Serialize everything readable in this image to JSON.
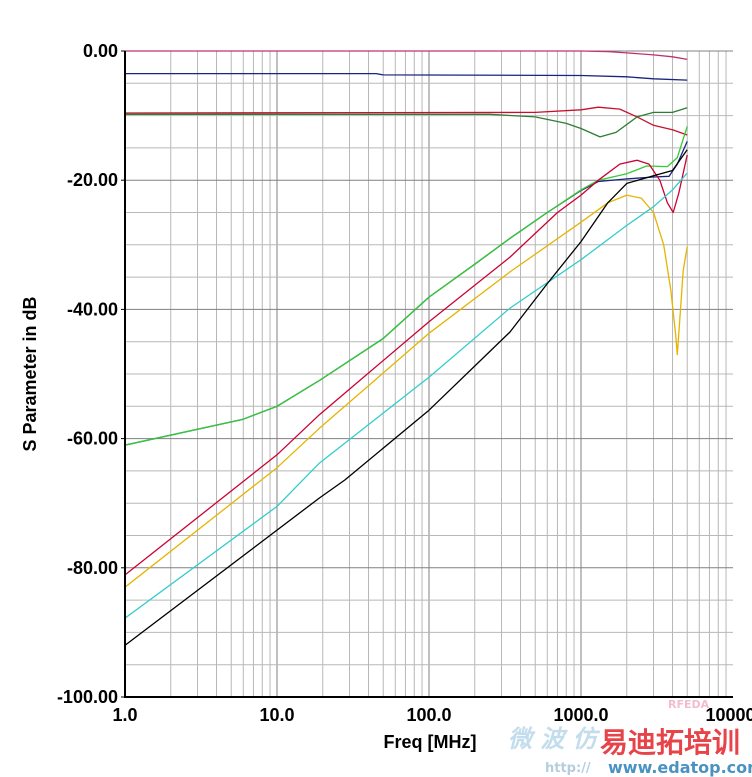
{
  "chart_data": {
    "type": "line",
    "title": "",
    "xlabel": "Freq [MHz]",
    "ylabel": "S Parameter in dB",
    "xscale": "log",
    "xlim": [
      1,
      10000
    ],
    "ylim": [
      -100,
      0
    ],
    "x_ticks": [
      "1.0",
      "10.0",
      "100.0",
      "1000.0",
      "10000."
    ],
    "x_tick_values": [
      1,
      10,
      100,
      1000,
      10000
    ],
    "y_ticks": [
      "0.00",
      "-20.00",
      "-40.00",
      "-60.00",
      "-80.00",
      "-100.00"
    ],
    "y_tick_values": [
      0,
      -20,
      -40,
      -60,
      -80,
      -100
    ],
    "grid": true,
    "legend": "none",
    "series": [
      {
        "name": "trace-magenta",
        "color": "#c2306e",
        "x": [
          1,
          1000,
          1500,
          2000,
          3000,
          4000,
          5000
        ],
        "y": [
          0,
          0,
          -0.1,
          -0.3,
          -0.6,
          -0.9,
          -1.3
        ]
      },
      {
        "name": "trace-navy-top",
        "color": "#1a237e",
        "x": [
          1,
          45,
          50,
          1000,
          2000,
          3000,
          5000
        ],
        "y": [
          -3.5,
          -3.5,
          -3.7,
          -3.8,
          -4.0,
          -4.3,
          -4.5
        ]
      },
      {
        "name": "trace-red-top",
        "color": "#c8102e",
        "x": [
          1,
          500,
          1000,
          1300,
          1800,
          2340,
          3000,
          4000,
          5000
        ],
        "y": [
          -9.6,
          -9.5,
          -9.1,
          -8.7,
          -9.0,
          -10.2,
          -11.5,
          -12.2,
          -13
        ]
      },
      {
        "name": "trace-darkgreen",
        "color": "#2e7d32",
        "x": [
          1,
          250,
          500,
          800,
          1000,
          1334,
          1700,
          2340,
          3000,
          4000,
          5000
        ],
        "y": [
          -9.8,
          -9.8,
          -10.2,
          -11.2,
          -12,
          -13.3,
          -12.6,
          -10.2,
          -9.5,
          -9.5,
          -8.8
        ]
      },
      {
        "name": "trace-navy-coupling",
        "color": "#1a237e",
        "x": [
          1,
          6,
          10,
          19,
          50,
          100,
          200,
          341,
          600,
          1000,
          1300,
          2000,
          3000,
          3800,
          4300,
          5000
        ],
        "y": [
          -61,
          -57,
          -55,
          -51,
          -44.5,
          -38.1,
          -33,
          -29,
          -25,
          -21.6,
          -20.2,
          -19.8,
          -19.5,
          -19.4,
          -17.5,
          -14
        ]
      },
      {
        "name": "trace-green",
        "color": "#33cc33",
        "x": [
          1,
          6,
          10,
          19,
          50,
          100,
          200,
          341,
          600,
          1000,
          1300,
          2000,
          2700,
          3700,
          4300,
          5000
        ],
        "y": [
          -61,
          -57,
          -55,
          -51,
          -44.5,
          -38.1,
          -33,
          -29,
          -25,
          -21.5,
          -20,
          -19,
          -17.8,
          -17.9,
          -16.5,
          -11.7
        ]
      },
      {
        "name": "trace-red-s21",
        "color": "#cc0033",
        "x": [
          1,
          10,
          19,
          100,
          341,
          700,
          1000,
          1300,
          1800,
          2340,
          2800,
          3300,
          3700,
          4040,
          4400,
          5000
        ],
        "y": [
          -81.1,
          -62.5,
          -56.3,
          -41.9,
          -31.9,
          -25,
          -22.3,
          -20,
          -17.5,
          -16.9,
          -17.5,
          -20,
          -23.5,
          -25,
          -22,
          -16.1
        ]
      },
      {
        "name": "trace-orange",
        "color": "#e6b400",
        "x": [
          1,
          10,
          19,
          100,
          341,
          1000,
          1500,
          2000,
          2500,
          3000,
          3500,
          3900,
          4200,
          4300,
          4450,
          4700,
          5000
        ],
        "y": [
          -83,
          -64.5,
          -58.4,
          -43.7,
          -34.2,
          -26.5,
          -23.5,
          -22.3,
          -22.8,
          -25,
          -30,
          -37,
          -44,
          -47,
          -42,
          -34,
          -30.3
        ]
      },
      {
        "name": "trace-cyan",
        "color": "#33cccc",
        "x": [
          1,
          10,
          19,
          100,
          341,
          1000,
          2000,
          3000,
          4000,
          5000
        ],
        "y": [
          -87.8,
          -70.5,
          -63.8,
          -50.5,
          -39.8,
          -32.3,
          -27,
          -24.1,
          -21.5,
          -18.9
        ]
      },
      {
        "name": "trace-black",
        "color": "#000000",
        "x": [
          1,
          19,
          28,
          100,
          341,
          600,
          1000,
          1500,
          2000,
          3000,
          4000,
          5000
        ],
        "y": [
          -92,
          -69.2,
          -66.4,
          -55.6,
          -43.5,
          -36,
          -29.5,
          -23.5,
          -20.5,
          -19.3,
          -18.5,
          -15.3
        ]
      }
    ]
  },
  "watermark": {
    "brand": "易迪拓培训",
    "url": "www.edatop.com",
    "prefix": "http://",
    "forum": "微 波 仿",
    "small": "RFEDA"
  }
}
